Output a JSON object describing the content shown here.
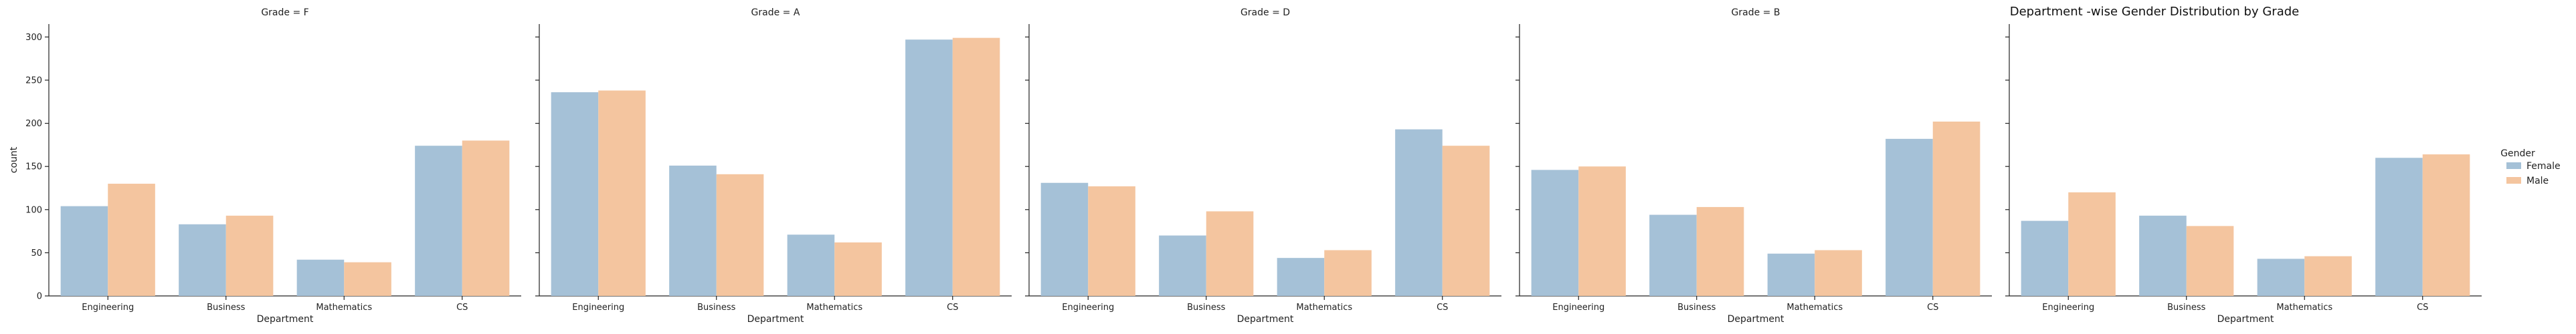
{
  "chart_data": {
    "type": "bar",
    "title": "Department -wise Gender Distribution by Grade",
    "xlabel": "Department",
    "ylabel": "count",
    "categories": [
      "Engineering",
      "Business",
      "Mathematics",
      "CS"
    ],
    "ylim": [
      0,
      315
    ],
    "yticks": [
      0,
      50,
      100,
      150,
      200,
      250,
      300
    ],
    "grid": false,
    "legend": {
      "title": "Gender",
      "placement": "right",
      "entries": [
        "Female",
        "Male"
      ]
    },
    "colors": {
      "Female": "#a5c1d7",
      "Male": "#f4c59f"
    },
    "panels": [
      {
        "title": "Grade = F",
        "series": [
          {
            "name": "Female",
            "values": [
              104,
              83,
              42,
              174
            ]
          },
          {
            "name": "Male",
            "values": [
              130,
              93,
              39,
              180
            ]
          }
        ]
      },
      {
        "title": "Grade = A",
        "series": [
          {
            "name": "Female",
            "values": [
              236,
              151,
              71,
              297
            ]
          },
          {
            "name": "Male",
            "values": [
              238,
              141,
              62,
              299
            ]
          }
        ]
      },
      {
        "title": "Grade = D",
        "series": [
          {
            "name": "Female",
            "values": [
              131,
              70,
              44,
              193
            ]
          },
          {
            "name": "Male",
            "values": [
              127,
              98,
              53,
              174
            ]
          }
        ]
      },
      {
        "title": "Grade = B",
        "series": [
          {
            "name": "Female",
            "values": [
              146,
              94,
              49,
              182
            ]
          },
          {
            "name": "Male",
            "values": [
              150,
              103,
              53,
              202
            ]
          }
        ]
      },
      {
        "title": "",
        "series": [
          {
            "name": "Female",
            "values": [
              87,
              93,
              43,
              160
            ]
          },
          {
            "name": "Male",
            "values": [
              120,
              81,
              46,
              164
            ]
          }
        ]
      }
    ]
  }
}
